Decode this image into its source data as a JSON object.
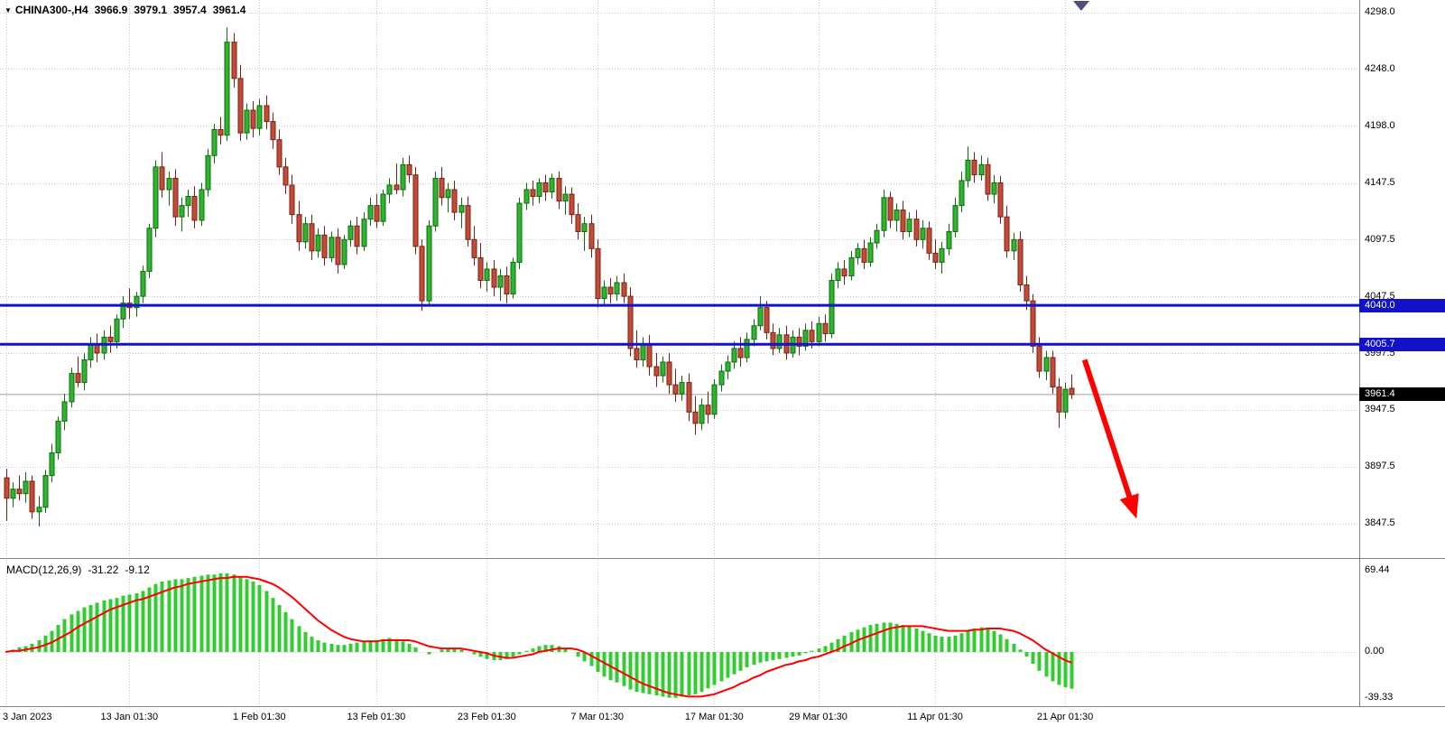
{
  "header": {
    "symbol_period": "CHINA300-,H4",
    "open": "3966.9",
    "high": "3979.1",
    "low": "3957.4",
    "close": "3961.4"
  },
  "icons": {
    "symbol_dropdown": "▼"
  },
  "macd_header": {
    "title": "MACD(12,26,9)",
    "value": "-31.22",
    "signal": "-9.12"
  },
  "colors": {
    "bull_fill": "#2FB42F",
    "bull_stroke": "#0E6B0E",
    "bear_fill": "#C44B37",
    "bear_stroke": "#7A1F12",
    "level": "#1212C8",
    "hist": "#33CC33",
    "signal": "#FF0000",
    "arrow": "#FF0000",
    "grid": "#C9C9C9",
    "separator": "#808080",
    "current_line": "#A0A0A0",
    "badge_black": "#000000",
    "shift_marker": "#4D4D80"
  },
  "chart_data": {
    "type": "candlestick",
    "symbol": "CHINA300-",
    "timeframe": "H4",
    "price_gridlines": [
      4298.0,
      4248.0,
      4198.0,
      4147.5,
      4097.5,
      4047.5,
      3997.5,
      3947.5,
      3897.5,
      3847.5
    ],
    "price_axis_labels": [
      "4298.0",
      "4248.0",
      "4198.0",
      "4147.5",
      "4097.5",
      "4047.5",
      "3997.5",
      "3947.5",
      "3897.5",
      "3847.5"
    ],
    "levels": [
      {
        "label": "4040.0",
        "value": 4040.0
      },
      {
        "label": "4005.7",
        "value": 4005.7
      }
    ],
    "current_price": {
      "label": "3961.4",
      "value": 3961.4
    },
    "time_labels": [
      {
        "text": "3 Jan 2023",
        "candle_index": 0
      },
      {
        "text": "13 Jan 01:30",
        "candle_index": 19
      },
      {
        "text": "1 Feb 01:30",
        "candle_index": 39
      },
      {
        "text": "13 Feb 01:30",
        "candle_index": 57
      },
      {
        "text": "23 Feb 01:30",
        "candle_index": 74
      },
      {
        "text": "7 Mar 01:30",
        "candle_index": 91
      },
      {
        "text": "17 Mar 01:30",
        "candle_index": 109
      },
      {
        "text": "29 Mar 01:30",
        "candle_index": 125
      },
      {
        "text": "11 Apr 01:30",
        "candle_index": 143
      },
      {
        "text": "21 Apr 01:30",
        "candle_index": 163
      }
    ],
    "candles": [
      [
        3888,
        3896,
        3850,
        3870
      ],
      [
        3870,
        3884,
        3862,
        3878
      ],
      [
        3878,
        3890,
        3868,
        3874
      ],
      [
        3874,
        3893,
        3866,
        3885
      ],
      [
        3885,
        3890,
        3852,
        3858
      ],
      [
        3858,
        3872,
        3845,
        3862
      ],
      [
        3862,
        3895,
        3857,
        3890
      ],
      [
        3890,
        3918,
        3884,
        3910
      ],
      [
        3910,
        3942,
        3904,
        3938
      ],
      [
        3938,
        3962,
        3930,
        3955
      ],
      [
        3955,
        3985,
        3950,
        3980
      ],
      [
        3980,
        3995,
        3968,
        3972
      ],
      [
        3972,
        3998,
        3965,
        3992
      ],
      [
        3992,
        4012,
        3985,
        4005
      ],
      [
        4005,
        4015,
        3990,
        3998
      ],
      [
        3998,
        4018,
        3992,
        4012
      ],
      [
        4012,
        4022,
        3998,
        4008
      ],
      [
        4008,
        4032,
        4002,
        4028
      ],
      [
        4028,
        4048,
        4020,
        4042
      ],
      [
        4042,
        4055,
        4028,
        4038
      ],
      [
        4038,
        4052,
        4030,
        4048
      ],
      [
        4048,
        4075,
        4042,
        4070
      ],
      [
        4070,
        4112,
        4064,
        4108
      ],
      [
        4108,
        4168,
        4100,
        4162
      ],
      [
        4162,
        4175,
        4135,
        4142
      ],
      [
        4142,
        4158,
        4128,
        4152
      ],
      [
        4152,
        4160,
        4110,
        4118
      ],
      [
        4118,
        4135,
        4105,
        4128
      ],
      [
        4128,
        4142,
        4118,
        4136
      ],
      [
        4136,
        4145,
        4108,
        4115
      ],
      [
        4115,
        4148,
        4110,
        4142
      ],
      [
        4142,
        4178,
        4136,
        4172
      ],
      [
        4172,
        4200,
        4165,
        4195
      ],
      [
        4195,
        4206,
        4182,
        4190
      ],
      [
        4190,
        4285,
        4185,
        4272
      ],
      [
        4272,
        4280,
        4232,
        4240
      ],
      [
        4240,
        4252,
        4185,
        4192
      ],
      [
        4192,
        4218,
        4186,
        4212
      ],
      [
        4212,
        4220,
        4188,
        4196
      ],
      [
        4196,
        4222,
        4190,
        4216
      ],
      [
        4216,
        4225,
        4195,
        4202
      ],
      [
        4202,
        4210,
        4178,
        4186
      ],
      [
        4186,
        4195,
        4155,
        4162
      ],
      [
        4162,
        4170,
        4138,
        4146
      ],
      [
        4146,
        4155,
        4112,
        4120
      ],
      [
        4120,
        4132,
        4088,
        4096
      ],
      [
        4096,
        4118,
        4090,
        4112
      ],
      [
        4112,
        4120,
        4080,
        4088
      ],
      [
        4088,
        4108,
        4082,
        4102
      ],
      [
        4102,
        4110,
        4075,
        4082
      ],
      [
        4082,
        4105,
        4078,
        4100
      ],
      [
        4100,
        4108,
        4068,
        4076
      ],
      [
        4076,
        4102,
        4072,
        4098
      ],
      [
        4098,
        4115,
        4092,
        4110
      ],
      [
        4110,
        4118,
        4085,
        4092
      ],
      [
        4092,
        4122,
        4088,
        4116
      ],
      [
        4116,
        4135,
        4110,
        4128
      ],
      [
        4128,
        4138,
        4108,
        4114
      ],
      [
        4114,
        4142,
        4110,
        4138
      ],
      [
        4138,
        4152,
        4130,
        4146
      ],
      [
        4146,
        4165,
        4138,
        4142
      ],
      [
        4142,
        4170,
        4136,
        4164
      ],
      [
        4164,
        4172,
        4148,
        4155
      ],
      [
        4155,
        4162,
        4085,
        4092
      ],
      [
        4092,
        4098,
        4035,
        4044
      ],
      [
        4044,
        4115,
        4040,
        4110
      ],
      [
        4110,
        4158,
        4105,
        4152
      ],
      [
        4152,
        4162,
        4128,
        4135
      ],
      [
        4135,
        4148,
        4122,
        4142
      ],
      [
        4142,
        4150,
        4115,
        4122
      ],
      [
        4122,
        4135,
        4108,
        4128
      ],
      [
        4128,
        4136,
        4092,
        4098
      ],
      [
        4098,
        4110,
        4075,
        4082
      ],
      [
        4082,
        4095,
        4055,
        4062
      ],
      [
        4062,
        4078,
        4052,
        4072
      ],
      [
        4072,
        4080,
        4048,
        4056
      ],
      [
        4056,
        4072,
        4044,
        4066
      ],
      [
        4066,
        4074,
        4042,
        4050
      ],
      [
        4050,
        4082,
        4046,
        4078
      ],
      [
        4078,
        4135,
        4072,
        4130
      ],
      [
        4130,
        4148,
        4124,
        4142
      ],
      [
        4142,
        4150,
        4128,
        4136
      ],
      [
        4136,
        4152,
        4130,
        4148
      ],
      [
        4148,
        4155,
        4132,
        4140
      ],
      [
        4140,
        4156,
        4134,
        4152
      ],
      [
        4152,
        4158,
        4125,
        4132
      ],
      [
        4132,
        4145,
        4120,
        4138
      ],
      [
        4138,
        4144,
        4112,
        4120
      ],
      [
        4120,
        4130,
        4098,
        4105
      ],
      [
        4105,
        4118,
        4088,
        4112
      ],
      [
        4112,
        4120,
        4082,
        4090
      ],
      [
        4090,
        4098,
        4038,
        4046
      ],
      [
        4046,
        4062,
        4040,
        4056
      ],
      [
        4056,
        4064,
        4042,
        4050
      ],
      [
        4050,
        4066,
        4044,
        4060
      ],
      [
        4060,
        4068,
        4042,
        4048
      ],
      [
        4048,
        4056,
        3995,
        4002
      ],
      [
        4002,
        4018,
        3985,
        3992
      ],
      [
        3992,
        4012,
        3986,
        4006
      ],
      [
        4006,
        4014,
        3978,
        3986
      ],
      [
        3986,
        3998,
        3968,
        3978
      ],
      [
        3978,
        3995,
        3972,
        3990
      ],
      [
        3990,
        3998,
        3962,
        3970
      ],
      [
        3970,
        3984,
        3955,
        3962
      ],
      [
        3962,
        3978,
        3956,
        3972
      ],
      [
        3972,
        3980,
        3938,
        3946
      ],
      [
        3946,
        3960,
        3926,
        3936
      ],
      [
        3936,
        3958,
        3930,
        3952
      ],
      [
        3952,
        3964,
        3936,
        3944
      ],
      [
        3944,
        3975,
        3940,
        3970
      ],
      [
        3970,
        3988,
        3964,
        3982
      ],
      [
        3982,
        3996,
        3975,
        3990
      ],
      [
        3990,
        4008,
        3984,
        4002
      ],
      [
        4002,
        4012,
        3986,
        3994
      ],
      [
        3994,
        4016,
        3990,
        4010
      ],
      [
        4010,
        4028,
        4004,
        4022
      ],
      [
        4022,
        4048,
        4018,
        4038
      ],
      [
        4038,
        4044,
        4010,
        4016
      ],
      [
        4016,
        4024,
        3996,
        4002
      ],
      [
        4002,
        4020,
        3998,
        4014
      ],
      [
        4014,
        4022,
        3992,
        3998
      ],
      [
        3998,
        4018,
        3994,
        4012
      ],
      [
        4012,
        4020,
        3996,
        4004
      ],
      [
        4004,
        4024,
        4000,
        4018
      ],
      [
        4018,
        4026,
        4002,
        4008
      ],
      [
        4008,
        4030,
        4004,
        4024
      ],
      [
        4024,
        4032,
        4008,
        4015
      ],
      [
        4015,
        4068,
        4011,
        4062
      ],
      [
        4062,
        4078,
        4055,
        4072
      ],
      [
        4072,
        4080,
        4058,
        4066
      ],
      [
        4066,
        4088,
        4062,
        4082
      ],
      [
        4082,
        4095,
        4076,
        4090
      ],
      [
        4090,
        4098,
        4072,
        4078
      ],
      [
        4078,
        4100,
        4074,
        4095
      ],
      [
        4095,
        4112,
        4090,
        4106
      ],
      [
        4106,
        4142,
        4100,
        4135
      ],
      [
        4135,
        4140,
        4108,
        4115
      ],
      [
        4115,
        4130,
        4105,
        4124
      ],
      [
        4124,
        4132,
        4098,
        4105
      ],
      [
        4105,
        4122,
        4100,
        4116
      ],
      [
        4116,
        4124,
        4092,
        4098
      ],
      [
        4098,
        4115,
        4090,
        4108
      ],
      [
        4108,
        4114,
        4080,
        4086
      ],
      [
        4086,
        4098,
        4072,
        4078
      ],
      [
        4078,
        4096,
        4068,
        4090
      ],
      [
        4090,
        4112,
        4084,
        4105
      ],
      [
        4105,
        4135,
        4100,
        4128
      ],
      [
        4128,
        4158,
        4122,
        4150
      ],
      [
        4150,
        4180,
        4144,
        4168
      ],
      [
        4168,
        4175,
        4148,
        4155
      ],
      [
        4155,
        4172,
        4150,
        4164
      ],
      [
        4164,
        4170,
        4132,
        4138
      ],
      [
        4138,
        4155,
        4130,
        4148
      ],
      [
        4148,
        4154,
        4112,
        4118
      ],
      [
        4118,
        4128,
        4082,
        4088
      ],
      [
        4088,
        4104,
        4080,
        4098
      ],
      [
        4098,
        4105,
        4052,
        4058
      ],
      [
        4058,
        4066,
        4036,
        4044
      ],
      [
        4044,
        4050,
        3998,
        4004
      ],
      [
        4004,
        4012,
        3976,
        3982
      ],
      [
        3982,
        4000,
        3974,
        3994
      ],
      [
        3994,
        4000,
        3962,
        3968
      ],
      [
        3968,
        3976,
        3932,
        3946
      ],
      [
        3946,
        3972,
        3940,
        3966
      ],
      [
        3966.9,
        3979.1,
        3957.4,
        3961.4
      ]
    ],
    "macd": {
      "params": "MACD(12,26,9)",
      "current_value": -31.22,
      "current_signal": -9.12,
      "axis_labels": [
        {
          "text": "69.44",
          "value": 69.44
        },
        {
          "text": "0.00",
          "value": 0
        },
        {
          "text": "-39.33",
          "value": -39.33
        }
      ],
      "histogram": [
        1,
        2,
        4,
        5,
        7,
        10,
        14,
        18,
        23,
        28,
        32,
        35,
        38,
        40,
        42,
        44,
        45,
        46,
        48,
        49,
        50,
        52,
        55,
        58,
        60,
        61,
        62,
        62,
        63,
        64,
        65,
        66,
        66,
        67,
        67,
        66,
        64,
        62,
        60,
        57,
        52,
        46,
        40,
        34,
        28,
        22,
        17,
        13,
        10,
        8,
        7,
        6,
        6,
        7,
        8,
        9,
        10,
        10,
        11,
        12,
        11,
        9,
        7,
        4,
        0,
        -2,
        0,
        2,
        3,
        3,
        2,
        0,
        -2,
        -4,
        -6,
        -7,
        -7,
        -6,
        -4,
        -2,
        1,
        3,
        5,
        6,
        6,
        5,
        3,
        0,
        -4,
        -8,
        -12,
        -17,
        -21,
        -24,
        -26,
        -29,
        -32,
        -34,
        -35,
        -36,
        -37,
        -38,
        -39,
        -39,
        -38,
        -37,
        -36,
        -34,
        -31,
        -28,
        -25,
        -22,
        -19,
        -16,
        -13,
        -11,
        -9,
        -8,
        -7,
        -6,
        -5,
        -4,
        -3,
        -1,
        1,
        3,
        5,
        8,
        11,
        14,
        17,
        19,
        21,
        23,
        24,
        25,
        25,
        24,
        23,
        22,
        20,
        18,
        16,
        14,
        13,
        13,
        14,
        16,
        18,
        20,
        21,
        20,
        18,
        15,
        11,
        7,
        2,
        -4,
        -10,
        -16,
        -21,
        -25,
        -28,
        -30,
        -31.22
      ],
      "signal": [
        0,
        1,
        1,
        2,
        3,
        4,
        6,
        8,
        11,
        14,
        17,
        21,
        24,
        27,
        30,
        33,
        36,
        38,
        40,
        42,
        44,
        45,
        47,
        49,
        51,
        53,
        55,
        56,
        58,
        59,
        60,
        61,
        62,
        63,
        63,
        64,
        64,
        64,
        63,
        62,
        60,
        58,
        55,
        51,
        47,
        42,
        37,
        32,
        27,
        23,
        19,
        16,
        13,
        11,
        10,
        9,
        9,
        9,
        10,
        10,
        10,
        10,
        10,
        9,
        7,
        5,
        4,
        3,
        3,
        3,
        3,
        2,
        1,
        0,
        -1,
        -3,
        -4,
        -5,
        -5,
        -4,
        -3,
        -2,
        0,
        1,
        2,
        3,
        3,
        3,
        2,
        0,
        -3,
        -6,
        -9,
        -12,
        -15,
        -18,
        -21,
        -24,
        -27,
        -29,
        -31,
        -33,
        -35,
        -36,
        -37,
        -38,
        -38,
        -38,
        -37,
        -36,
        -34,
        -32,
        -30,
        -27,
        -25,
        -22,
        -20,
        -17,
        -15,
        -13,
        -11,
        -10,
        -8,
        -7,
        -5,
        -4,
        -2,
        0,
        2,
        5,
        7,
        10,
        12,
        14,
        16,
        18,
        20,
        21,
        22,
        22,
        22,
        22,
        21,
        20,
        19,
        18,
        18,
        18,
        18,
        19,
        19,
        20,
        20,
        20,
        19,
        18,
        16,
        13,
        10,
        6,
        2,
        -1,
        -4,
        -7,
        -9.12
      ]
    },
    "annotations": [
      {
        "type": "arrow-down",
        "start_index": 166,
        "start_price": 3992,
        "end_index": 174,
        "end_price": 3852
      }
    ]
  }
}
